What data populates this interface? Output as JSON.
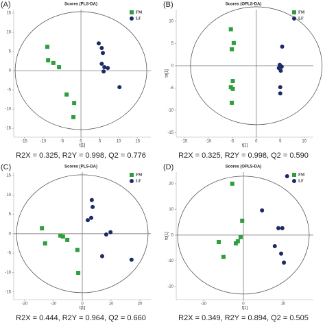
{
  "chart_data": [
    {
      "type": "scatter",
      "panel_label": "(A)",
      "title": "Scores (PLS-DA)",
      "xlabel": "t[1]",
      "caption": "R2X = 0.325, R2Y = 0.998, Q2 = 0.776",
      "xlim": [
        -17.8,
        18.5
      ],
      "ylim": [
        -17.3,
        15.9
      ],
      "xticks": [
        -15,
        -10,
        -5,
        0,
        5,
        10,
        15
      ],
      "yticks": [
        -15,
        -10,
        -5,
        0,
        5,
        10,
        15
      ],
      "legend": "upper right",
      "series": [
        {
          "name": "FM",
          "color": "#2e9e3e",
          "marker": "square",
          "x": [
            -8.9,
            -8.7,
            -7.3,
            -5.8,
            -3.8,
            -1.8,
            -2.0
          ],
          "values": [
            6.2,
            2.7,
            2.0,
            0.9,
            -6.2,
            -8.4,
            -12.1
          ]
        },
        {
          "name": "LF",
          "color": "#1c2a66",
          "marker": "circle",
          "x": [
            4.7,
            5.5,
            5.8,
            5.5,
            6.2,
            6.0,
            7.1,
            10.2
          ],
          "values": [
            7.1,
            5.9,
            4.6,
            1.8,
            0.9,
            -0.2,
            0.7,
            -4.3
          ]
        }
      ]
    },
    {
      "type": "scatter",
      "panel_label": "(B)",
      "title": "Scores (OPLS-DA)",
      "xlabel": "t[1]",
      "ylabel": "to[1]",
      "caption": "R2X = 0.325, R2Y = 0.998, Q2 = 0.590",
      "xlim": [
        -16.7,
        11.9
      ],
      "ylim": [
        -16.0,
        12.6
      ],
      "xticks": [
        -15,
        -10,
        -5,
        0,
        5,
        10
      ],
      "yticks": [
        -15,
        -10,
        -5,
        0,
        5,
        10
      ],
      "legend": "upper right",
      "series": [
        {
          "name": "FM",
          "color": "#2e9e3e",
          "marker": "square",
          "x": [
            -5.3,
            -4.7,
            -5.1,
            -4.9,
            -5.3,
            -4.9,
            -5.1
          ],
          "values": [
            8.2,
            5.1,
            3.7,
            -3.4,
            -4.8,
            -5.2,
            -8.3
          ]
        },
        {
          "name": "LF",
          "color": "#1c2a66",
          "marker": "circle",
          "x": [
            5.4,
            4.9,
            5.3,
            4.7,
            5.1,
            5.0,
            5.0
          ],
          "values": [
            4.3,
            0.2,
            -0.2,
            -0.5,
            -1.1,
            -4.8,
            -6.2
          ]
        }
      ]
    },
    {
      "type": "scatter",
      "panel_label": "(C)",
      "title": "Scores (PLS-DA)",
      "xlabel": "t[1]",
      "caption": "R2X = 0.444, R2Y = 0.964, Q2 = 0.660",
      "xlim": [
        -23.8,
        23.8
      ],
      "ylim": [
        -17.0,
        15.9
      ],
      "xticks": [
        -20,
        -10,
        0,
        10,
        20
      ],
      "yticks": [
        -15,
        -10,
        -5,
        0,
        5,
        10,
        15
      ],
      "legend": "upper right",
      "series": [
        {
          "name": "FM",
          "color": "#2e9e3e",
          "marker": "square",
          "x": [
            -14.0,
            -12.9,
            -7.6,
            -6.7,
            -5.2,
            -1.7,
            -1.4
          ],
          "values": [
            1.4,
            -2.5,
            -0.5,
            -0.7,
            -1.6,
            -4.2,
            -10.1
          ]
        },
        {
          "name": "LF",
          "color": "#1c2a66",
          "marker": "circle",
          "x": [
            3.3,
            3.6,
            3.1,
            1.9,
            8.3,
            9.8,
            6.9,
            17.1
          ],
          "values": [
            8.7,
            6.9,
            4.1,
            3.5,
            -0.2,
            0.4,
            -5.8,
            -6.7
          ]
        }
      ]
    },
    {
      "type": "scatter",
      "panel_label": "(D)",
      "title": "Scores (OPLS-DA)",
      "xlabel": "t[1]",
      "ylabel": "to[1]",
      "caption": "R2X = 0.349, R2Y = 0.894, Q2 = 0.505",
      "xlim": [
        -16.9,
        17.6
      ],
      "ylim": [
        -25.1,
        24.5
      ],
      "xticks": [
        -10,
        0,
        10
      ],
      "yticks": [
        -20,
        -10,
        0,
        10,
        20
      ],
      "legend": "upper right",
      "series": [
        {
          "name": "FM",
          "color": "#2e9e3e",
          "marker": "square",
          "x": [
            -6.2,
            -5.0,
            -2.8,
            -1.9,
            -1.4,
            -0.7,
            -0.3
          ],
          "values": [
            -2.7,
            -8.5,
            20.0,
            -3.2,
            -2.4,
            -0.8,
            5.6
          ]
        },
        {
          "name": "LF",
          "color": "#1c2a66",
          "marker": "circle",
          "x": [
            4.7,
            11.0,
            8.8,
            9.8,
            7.9,
            9.5,
            10.2
          ],
          "values": [
            9.6,
            22.9,
            2.7,
            2.7,
            -4.3,
            -7.2,
            -10.7
          ]
        }
      ]
    }
  ]
}
